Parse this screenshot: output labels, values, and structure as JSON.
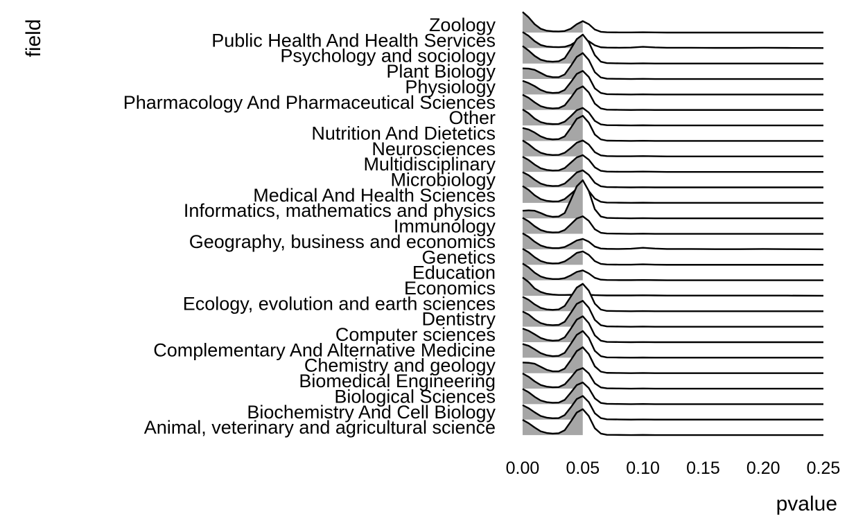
{
  "chart_data": {
    "type": "area",
    "subtype": "ridgeline",
    "title": "",
    "xlabel": "pvalue",
    "ylabel": "field",
    "xlim": [
      0,
      0.25
    ],
    "x_ticks": [
      0.0,
      0.05,
      0.1,
      0.15,
      0.2,
      0.25
    ],
    "x_tick_labels": [
      "0.00",
      "0.05",
      "0.10",
      "0.15",
      "0.20",
      "0.25"
    ],
    "grid": false,
    "legend": "none",
    "fill_color": "#A6A6A6",
    "line_color": "#000000",
    "fill_region": [
      0,
      0.05
    ],
    "x": [
      0.0,
      0.005,
      0.01,
      0.015,
      0.02,
      0.025,
      0.03,
      0.035,
      0.04,
      0.045,
      0.05,
      0.055,
      0.06,
      0.065,
      0.07,
      0.08,
      0.09,
      0.1,
      0.11,
      0.12,
      0.14,
      0.16,
      0.18,
      0.2,
      0.22,
      0.25
    ],
    "categories": [
      "Zoology",
      "Public Health And Health Services",
      "Psychology and sociology",
      "Plant Biology",
      "Physiology",
      "Pharmacology And Pharmaceutical Sciences",
      "Other",
      "Nutrition And Dietetics",
      "Neurosciences",
      "Multidisciplinary",
      "Microbiology",
      "Medical And Health Sciences",
      "Informatics, mathematics and physics",
      "Immunology",
      "Geography, business and economics",
      "Genetics",
      "Education",
      "Economics",
      "Ecology, evolution and earth sciences",
      "Dentistry",
      "Computer sciences",
      "Complementary And Alternative Medicine",
      "Chemistry and geology",
      "Biomedical Engineering",
      "Biological Sciences",
      "Biochemistry And Cell Biology",
      "Animal, veterinary and agricultural science"
    ],
    "series": [
      {
        "values": [
          1.35,
          1.0,
          0.55,
          0.25,
          0.12,
          0.08,
          0.07,
          0.1,
          0.25,
          0.55,
          0.75,
          0.55,
          0.2,
          0.05,
          0.02,
          0.01,
          0.01,
          0.02,
          0.01,
          0.0,
          0.0,
          0.0,
          0.0,
          0.0,
          0.0,
          0.0
        ]
      },
      {
        "values": [
          1.05,
          0.8,
          0.45,
          0.2,
          0.1,
          0.07,
          0.06,
          0.08,
          0.2,
          0.45,
          0.6,
          0.45,
          0.18,
          0.05,
          0.03,
          0.02,
          0.03,
          0.08,
          0.04,
          0.02,
          0.02,
          0.01,
          0.01,
          0.02,
          0.01,
          0.0
        ]
      },
      {
        "values": [
          1.15,
          0.85,
          0.5,
          0.25,
          0.15,
          0.12,
          0.15,
          0.35,
          0.95,
          1.6,
          1.9,
          1.4,
          0.55,
          0.12,
          0.03,
          0.01,
          0.0,
          0.01,
          0.0,
          0.0,
          0.0,
          0.0,
          0.0,
          0.0,
          0.0,
          0.0
        ]
      },
      {
        "values": [
          0.7,
          0.68,
          0.6,
          0.4,
          0.2,
          0.12,
          0.12,
          0.3,
          0.85,
          1.45,
          1.7,
          1.25,
          0.45,
          0.1,
          0.02,
          0.01,
          0.0,
          0.01,
          0.0,
          0.0,
          0.0,
          0.0,
          0.0,
          0.0,
          0.0,
          0.0
        ]
      },
      {
        "values": [
          0.9,
          0.75,
          0.55,
          0.3,
          0.15,
          0.1,
          0.12,
          0.3,
          0.8,
          1.35,
          1.55,
          1.15,
          0.4,
          0.1,
          0.02,
          0.01,
          0.0,
          0.01,
          0.0,
          0.0,
          0.0,
          0.0,
          0.0,
          0.0,
          0.0,
          0.0
        ]
      },
      {
        "values": [
          1.0,
          0.8,
          0.5,
          0.25,
          0.14,
          0.1,
          0.12,
          0.3,
          0.8,
          1.35,
          1.55,
          1.15,
          0.42,
          0.1,
          0.02,
          0.01,
          0.0,
          0.01,
          0.0,
          0.0,
          0.0,
          0.0,
          0.0,
          0.0,
          0.0,
          0.0
        ]
      },
      {
        "values": [
          1.05,
          0.8,
          0.45,
          0.22,
          0.12,
          0.09,
          0.1,
          0.25,
          0.6,
          1.0,
          1.15,
          0.85,
          0.3,
          0.07,
          0.02,
          0.01,
          0.0,
          0.01,
          0.0,
          0.0,
          0.0,
          0.0,
          0.0,
          0.0,
          0.0,
          0.0
        ]
      },
      {
        "values": [
          0.85,
          0.75,
          0.55,
          0.3,
          0.15,
          0.1,
          0.12,
          0.3,
          0.85,
          1.45,
          1.65,
          1.2,
          0.42,
          0.1,
          0.02,
          0.01,
          0.0,
          0.01,
          0.0,
          0.0,
          0.0,
          0.0,
          0.0,
          0.0,
          0.0,
          0.0
        ]
      },
      {
        "values": [
          1.05,
          0.8,
          0.48,
          0.24,
          0.13,
          0.09,
          0.1,
          0.24,
          0.55,
          0.9,
          1.05,
          0.78,
          0.28,
          0.07,
          0.02,
          0.01,
          0.01,
          0.02,
          0.01,
          0.0,
          0.0,
          0.0,
          0.0,
          0.0,
          0.0,
          0.0
        ]
      },
      {
        "values": [
          1.0,
          0.78,
          0.48,
          0.24,
          0.13,
          0.09,
          0.1,
          0.25,
          0.6,
          0.95,
          1.1,
          0.8,
          0.3,
          0.07,
          0.02,
          0.01,
          0.01,
          0.02,
          0.01,
          0.0,
          0.0,
          0.0,
          0.0,
          0.0,
          0.0,
          0.0
        ]
      },
      {
        "values": [
          1.0,
          0.8,
          0.5,
          0.25,
          0.13,
          0.09,
          0.1,
          0.25,
          0.6,
          0.98,
          1.12,
          0.82,
          0.3,
          0.07,
          0.02,
          0.01,
          0.0,
          0.01,
          0.0,
          0.0,
          0.0,
          0.0,
          0.0,
          0.0,
          0.0,
          0.0
        ]
      },
      {
        "values": [
          1.1,
          0.85,
          0.5,
          0.25,
          0.13,
          0.09,
          0.1,
          0.25,
          0.58,
          0.92,
          1.05,
          0.78,
          0.28,
          0.07,
          0.02,
          0.01,
          0.0,
          0.01,
          0.0,
          0.0,
          0.0,
          0.0,
          0.0,
          0.0,
          0.0,
          0.0
        ]
      },
      {
        "values": [
          0.5,
          0.52,
          0.5,
          0.35,
          0.18,
          0.1,
          0.12,
          0.35,
          1.2,
          2.1,
          2.5,
          1.8,
          0.6,
          0.12,
          0.03,
          0.01,
          0.0,
          0.01,
          0.0,
          0.0,
          0.0,
          0.0,
          0.0,
          0.0,
          0.0,
          0.0
        ]
      },
      {
        "values": [
          1.05,
          0.82,
          0.5,
          0.25,
          0.13,
          0.09,
          0.1,
          0.25,
          0.62,
          1.0,
          1.15,
          0.85,
          0.3,
          0.07,
          0.02,
          0.01,
          0.0,
          0.01,
          0.0,
          0.0,
          0.0,
          0.0,
          0.0,
          0.0,
          0.0,
          0.0
        ]
      },
      {
        "values": [
          1.05,
          0.82,
          0.5,
          0.25,
          0.13,
          0.08,
          0.08,
          0.15,
          0.35,
          0.58,
          0.68,
          0.5,
          0.18,
          0.05,
          0.03,
          0.02,
          0.04,
          0.1,
          0.05,
          0.02,
          0.02,
          0.01,
          0.01,
          0.02,
          0.01,
          0.0
        ]
      },
      {
        "values": [
          1.05,
          0.82,
          0.5,
          0.25,
          0.13,
          0.09,
          0.1,
          0.22,
          0.48,
          0.78,
          0.88,
          0.65,
          0.24,
          0.06,
          0.02,
          0.01,
          0.01,
          0.03,
          0.01,
          0.0,
          0.0,
          0.0,
          0.0,
          0.0,
          0.0,
          0.0
        ]
      },
      {
        "values": [
          1.1,
          0.85,
          0.5,
          0.25,
          0.13,
          0.08,
          0.08,
          0.14,
          0.32,
          0.55,
          0.65,
          0.45,
          0.16,
          0.04,
          0.02,
          0.01,
          0.01,
          0.02,
          0.01,
          0.0,
          0.0,
          0.0,
          0.0,
          0.0,
          0.0,
          0.0
        ]
      },
      {
        "values": [
          1.2,
          0.9,
          0.48,
          0.25,
          0.13,
          0.08,
          0.05,
          0.05,
          0.06,
          0.07,
          0.08,
          0.06,
          0.04,
          0.03,
          0.02,
          0.02,
          0.02,
          0.03,
          0.02,
          0.01,
          0.01,
          0.01,
          0.01,
          0.01,
          0.01,
          0.0
        ]
      },
      {
        "values": [
          0.95,
          0.75,
          0.45,
          0.22,
          0.12,
          0.09,
          0.12,
          0.35,
          0.95,
          1.55,
          1.8,
          1.35,
          0.5,
          0.11,
          0.02,
          0.01,
          0.0,
          0.01,
          0.0,
          0.0,
          0.0,
          0.0,
          0.0,
          0.0,
          0.0,
          0.0
        ]
      },
      {
        "values": [
          1.0,
          0.8,
          0.48,
          0.24,
          0.13,
          0.1,
          0.12,
          0.33,
          0.9,
          1.5,
          1.7,
          1.25,
          0.45,
          0.1,
          0.02,
          0.01,
          0.0,
          0.01,
          0.0,
          0.0,
          0.0,
          0.0,
          0.0,
          0.0,
          0.0,
          0.0
        ]
      },
      {
        "values": [
          0.9,
          0.75,
          0.52,
          0.28,
          0.15,
          0.1,
          0.12,
          0.32,
          0.88,
          1.48,
          1.7,
          1.25,
          0.45,
          0.1,
          0.02,
          0.01,
          0.0,
          0.01,
          0.0,
          0.0,
          0.0,
          0.0,
          0.0,
          0.0,
          0.0,
          0.0
        ]
      },
      {
        "values": [
          0.9,
          0.78,
          0.55,
          0.3,
          0.16,
          0.1,
          0.12,
          0.32,
          0.9,
          1.5,
          1.75,
          1.3,
          0.45,
          0.1,
          0.02,
          0.01,
          0.0,
          0.01,
          0.0,
          0.0,
          0.0,
          0.0,
          0.0,
          0.0,
          0.0,
          0.0
        ]
      },
      {
        "values": [
          0.7,
          0.68,
          0.62,
          0.42,
          0.22,
          0.12,
          0.12,
          0.3,
          0.85,
          1.45,
          1.7,
          1.25,
          0.45,
          0.1,
          0.02,
          0.01,
          0.0,
          0.01,
          0.0,
          0.0,
          0.0,
          0.0,
          0.0,
          0.0,
          0.0,
          0.0
        ]
      },
      {
        "values": [
          1.0,
          0.78,
          0.48,
          0.24,
          0.13,
          0.09,
          0.1,
          0.28,
          0.72,
          1.2,
          1.35,
          1.0,
          0.35,
          0.08,
          0.02,
          0.01,
          0.0,
          0.01,
          0.0,
          0.0,
          0.0,
          0.0,
          0.0,
          0.0,
          0.0,
          0.0
        ]
      },
      {
        "values": [
          1.0,
          0.78,
          0.48,
          0.24,
          0.13,
          0.09,
          0.1,
          0.28,
          0.75,
          1.25,
          1.42,
          1.05,
          0.38,
          0.08,
          0.02,
          0.01,
          0.0,
          0.01,
          0.0,
          0.0,
          0.0,
          0.0,
          0.0,
          0.0,
          0.0,
          0.0
        ]
      },
      {
        "values": [
          0.95,
          0.75,
          0.48,
          0.24,
          0.13,
          0.09,
          0.1,
          0.3,
          0.8,
          1.35,
          1.55,
          1.15,
          0.42,
          0.1,
          0.02,
          0.01,
          0.0,
          0.01,
          0.0,
          0.0,
          0.0,
          0.0,
          0.0,
          0.0,
          0.0,
          0.0
        ]
      },
      {
        "values": [
          1.0,
          0.78,
          0.5,
          0.25,
          0.14,
          0.1,
          0.12,
          0.32,
          0.88,
          1.48,
          1.7,
          1.25,
          0.45,
          0.1,
          0.02,
          0.01,
          0.0,
          0.01,
          0.0,
          0.0,
          0.0,
          0.0,
          0.0,
          0.0,
          0.0,
          0.0
        ]
      }
    ]
  }
}
